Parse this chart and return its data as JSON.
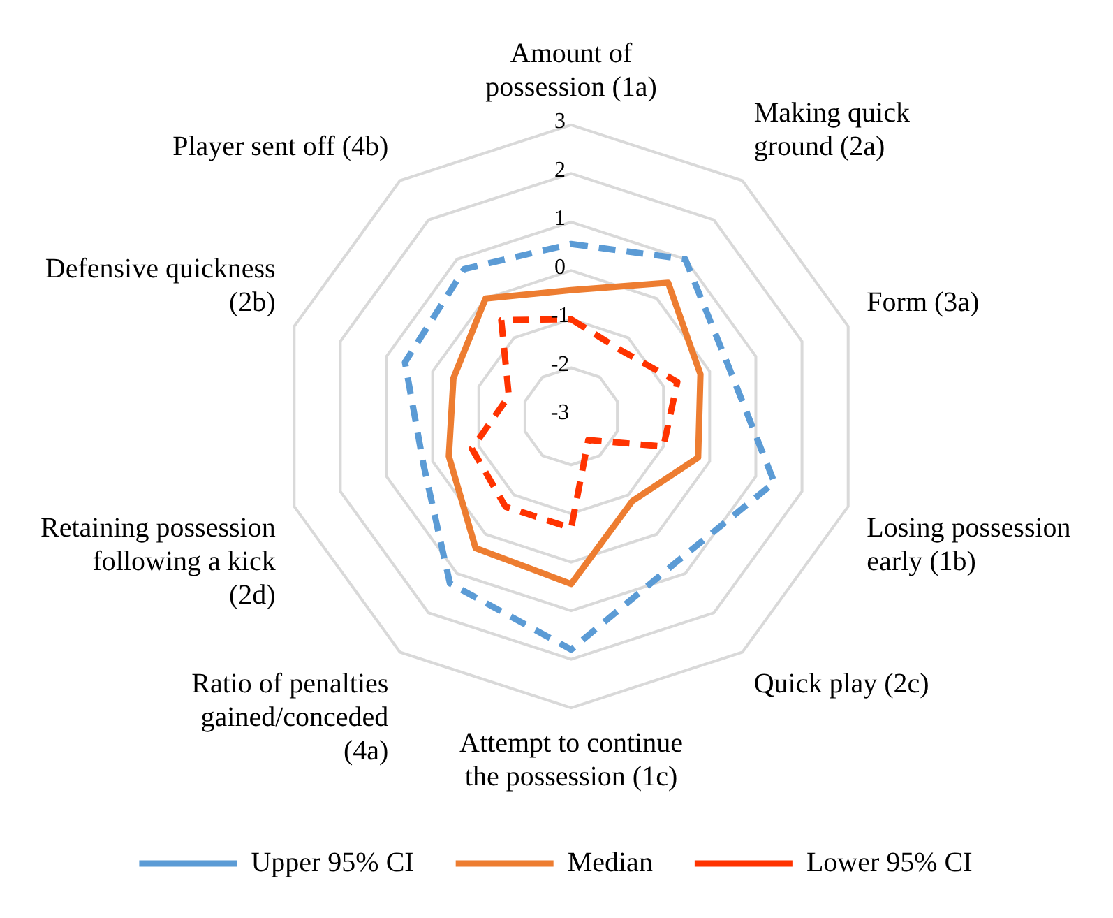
{
  "chart_data": {
    "type": "radar",
    "categories": [
      "Amount of possession (1a)",
      "Making quick ground (2a)",
      "Form (3a)",
      "Losing possession early (1b)",
      "Quick play (2c)",
      "Attempt to continue the possession (1c)",
      "Ratio of penalties gained/conceded (4a)",
      "Retaining possession following a kick (2d)",
      "Defensive quickness (2b)",
      "Player sent off (4b)"
    ],
    "series": [
      {
        "name": "Upper 95% CI",
        "color": "#5b9bd5",
        "line_style": "dashed",
        "values": [
          0.55,
          1.0,
          0.4,
          1.4,
          0.7,
          1.8,
          1.25,
          0.2,
          0.6,
          0.75
        ]
      },
      {
        "name": "Median",
        "color": "#ed7d31",
        "line_style": "solid",
        "values": [
          -0.4,
          0.4,
          -0.2,
          -0.25,
          -0.85,
          0.45,
          0.35,
          -0.35,
          -0.45,
          0.0
        ]
      },
      {
        "name": "Lower 95% CI",
        "color": "#ff3300",
        "line_style": "dashed",
        "values": [
          -1.0,
          -1.3,
          -0.7,
          -1.0,
          -2.4,
          -0.7,
          -0.7,
          -0.85,
          -1.65,
          -0.55
        ]
      }
    ],
    "ylim": [
      -3,
      3
    ],
    "yticks": [
      -3,
      -2,
      -1,
      0,
      1,
      2,
      3
    ],
    "grid": true,
    "legend": "bottom",
    "marker": "none"
  }
}
